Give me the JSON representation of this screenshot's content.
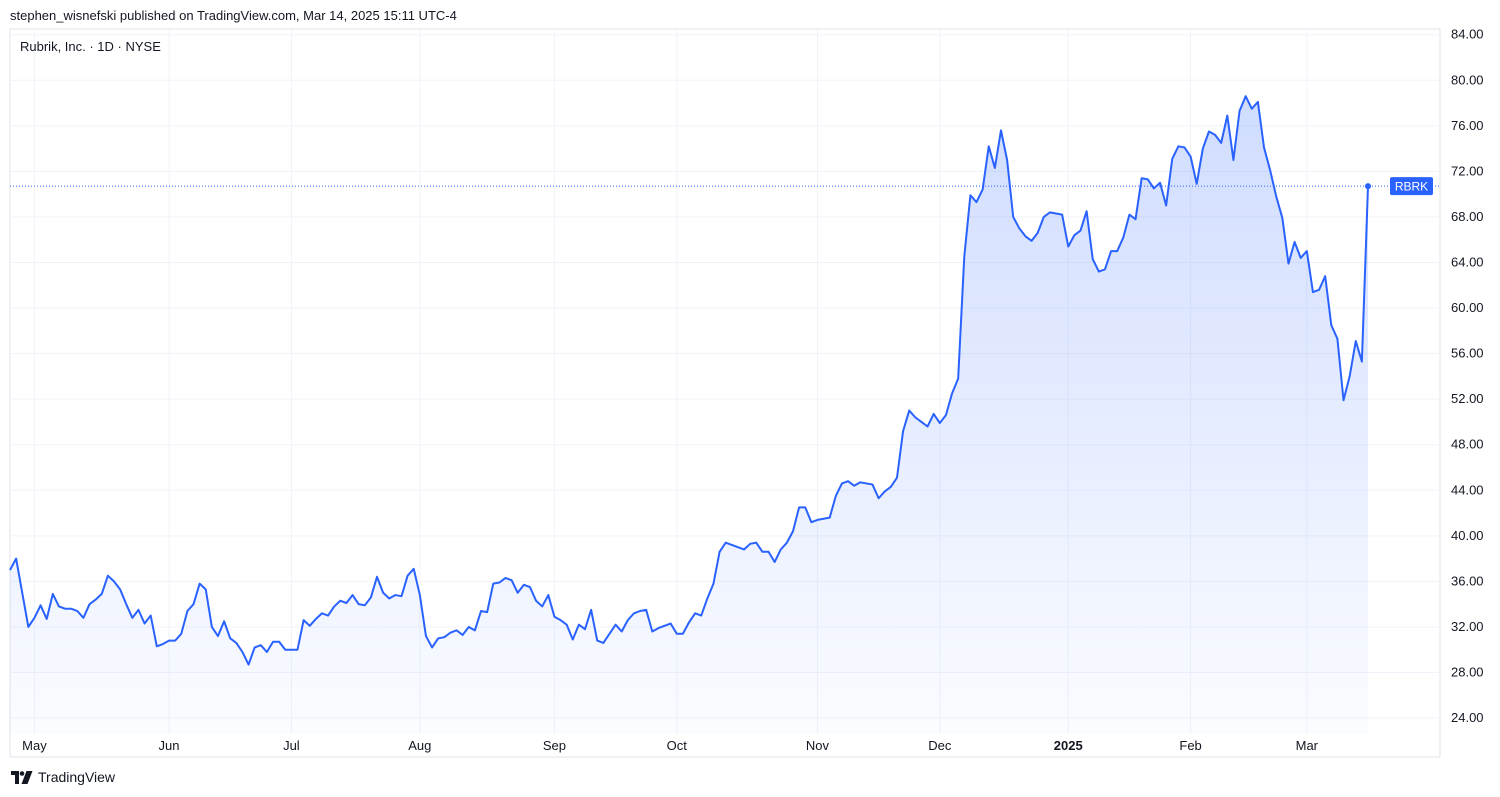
{
  "header": {
    "published_line": "stephen_wisnefski published on TradingView.com, Mar 14, 2025 15:11 UTC-4"
  },
  "footer": {
    "brand": "TradingView",
    "logo_icon": "tradingview-logo-icon"
  },
  "colors": {
    "line": "#2962ff",
    "area_top": "#2962ff",
    "grid": "#f0f3fa",
    "label_bg": "#2962ff",
    "text": "#131722"
  },
  "chart_data": {
    "type": "area",
    "title": "Rubrik, Inc. · 1D · NYSE",
    "symbol": "RBRK",
    "last_price": 70.7,
    "ylim": [
      22.6,
      84.5
    ],
    "yticks": [
      "24.00",
      "28.00",
      "32.00",
      "36.00",
      "40.00",
      "44.00",
      "48.00",
      "52.00",
      "56.00",
      "60.00",
      "64.00",
      "68.00",
      "72.00",
      "76.00",
      "80.00",
      "84.00"
    ],
    "xticks": [
      {
        "label": "May",
        "i": 4,
        "bold": false
      },
      {
        "label": "Jun",
        "i": 26,
        "bold": false
      },
      {
        "label": "Jul",
        "i": 46,
        "bold": false
      },
      {
        "label": "Aug",
        "i": 67,
        "bold": false
      },
      {
        "label": "Sep",
        "i": 89,
        "bold": false
      },
      {
        "label": "Oct",
        "i": 109,
        "bold": false
      },
      {
        "label": "Nov",
        "i": 132,
        "bold": false
      },
      {
        "label": "Dec",
        "i": 152,
        "bold": false
      },
      {
        "label": "2025",
        "i": 173,
        "bold": true
      },
      {
        "label": "Feb",
        "i": 193,
        "bold": false
      },
      {
        "label": "Mar",
        "i": 212,
        "bold": false
      }
    ],
    "grid": true,
    "series": [
      {
        "values": [
          37.0,
          38.0,
          35.0,
          32.0,
          32.8,
          33.9,
          32.7,
          34.9,
          33.8,
          33.6,
          33.6,
          33.4,
          32.8,
          34.0,
          34.4,
          34.9,
          36.5,
          36.0,
          35.3,
          34.0,
          32.8,
          33.5,
          32.3,
          33.0,
          30.3,
          30.5,
          30.8,
          30.8,
          31.4,
          33.4,
          34.0,
          35.8,
          35.3,
          32.0,
          31.2,
          32.5,
          31.0,
          30.6,
          29.8,
          28.7,
          30.2,
          30.4,
          29.8,
          30.7,
          30.7,
          30.0,
          30.0,
          30.0,
          32.6,
          32.1,
          32.7,
          33.2,
          33.0,
          33.8,
          34.3,
          34.1,
          34.8,
          34.0,
          33.9,
          34.6,
          36.4,
          35.0,
          34.5,
          34.8,
          34.7,
          36.5,
          37.1,
          34.8,
          31.2,
          30.2,
          31.0,
          31.1,
          31.5,
          31.7,
          31.3,
          32.0,
          31.7,
          33.4,
          33.3,
          35.8,
          35.9,
          36.3,
          36.1,
          35.0,
          35.7,
          35.5,
          34.3,
          33.8,
          34.8,
          32.9,
          32.6,
          32.2,
          30.9,
          32.2,
          31.8,
          33.5,
          30.8,
          30.6,
          31.4,
          32.2,
          31.6,
          32.6,
          33.2,
          33.4,
          33.5,
          31.6,
          31.9,
          32.1,
          32.3,
          31.4,
          31.4,
          32.4,
          33.2,
          33.0,
          34.5,
          35.8,
          38.6,
          39.4,
          39.2,
          39.0,
          38.8,
          39.3,
          39.4,
          38.6,
          38.6,
          37.7,
          38.8,
          39.4,
          40.4,
          42.5,
          42.5,
          41.2,
          41.4,
          41.5,
          41.6,
          43.5,
          44.6,
          44.8,
          44.4,
          44.7,
          44.6,
          44.5,
          43.3,
          43.9,
          44.3,
          45.1,
          49.2,
          51.0,
          50.4,
          50.0,
          49.6,
          50.7,
          49.9,
          50.6,
          52.5,
          53.8,
          64.5,
          69.9,
          69.3,
          70.4,
          74.2,
          72.3,
          75.6,
          73.0,
          68.0,
          67.0,
          66.3,
          65.9,
          66.6,
          68.0,
          68.4,
          68.3,
          68.2,
          65.4,
          66.4,
          66.8,
          68.5,
          64.3,
          63.2,
          63.4,
          65.0,
          65.0,
          66.2,
          68.2,
          67.8,
          71.4,
          71.3,
          70.5,
          71.0,
          69.0,
          73.1,
          74.2,
          74.1,
          73.3,
          70.9,
          74.0,
          75.5,
          75.2,
          74.5,
          76.9,
          73.0,
          77.3,
          78.6,
          77.5,
          78.1,
          74.1,
          72.1,
          69.8,
          67.9,
          63.9,
          65.8,
          64.4,
          65.0,
          61.4,
          61.6,
          62.8,
          58.5,
          57.3,
          51.9,
          54.0,
          57.1,
          55.3,
          70.7
        ]
      }
    ]
  }
}
